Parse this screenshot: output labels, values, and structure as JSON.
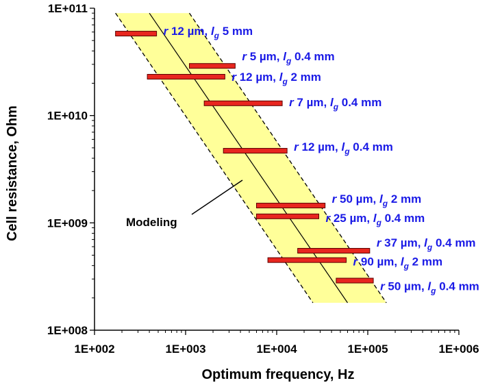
{
  "chart_data": {
    "type": "scatter",
    "xlabel": "Optimum frequency, Hz",
    "ylabel": "Cell resistance, Ohm",
    "xscale": "log",
    "yscale": "log",
    "xlim": [
      100,
      1000000
    ],
    "ylim": [
      100000000,
      100000000000
    ],
    "x_tick_labels": [
      "1E+002",
      "1E+003",
      "1E+004",
      "1E+005",
      "1E+006"
    ],
    "y_tick_labels": [
      "1E+008",
      "1E+009",
      "1E+010",
      "1E+011"
    ],
    "grid": false,
    "colors": {
      "bar_fill": "#e8261f",
      "bar_stroke": "#5a0000",
      "band_fill": "#ffff99",
      "label": "#1a1ae6"
    },
    "modeling_band": {
      "label": "Modeling",
      "center_line": [
        [
          400,
          90000000000
        ],
        [
          60000,
          180000000
        ]
      ],
      "upper_dashed": [
        [
          1100,
          90000000000
        ],
        [
          160000,
          180000000
        ]
      ],
      "lower_dashed": [
        [
          170,
          90000000000
        ],
        [
          25000,
          180000000
        ]
      ]
    },
    "ranges": [
      {
        "r": "12 µm",
        "lg": "5 mm",
        "x_min": 170,
        "x_max": 480,
        "y": 58000000000
      },
      {
        "r": "5 µm",
        "lg": "0.4 mm",
        "x_min": 1100,
        "x_max": 3500,
        "y": 29000000000
      },
      {
        "r": "12 µm",
        "lg": "2 mm",
        "x_min": 380,
        "x_max": 2700,
        "y": 23000000000
      },
      {
        "r": "7 µm",
        "lg": "0.4 mm",
        "x_min": 1600,
        "x_max": 11500,
        "y": 13000000000
      },
      {
        "r": "12 µm",
        "lg": "0.4 mm",
        "x_min": 2600,
        "x_max": 13000,
        "y": 4700000000
      },
      {
        "r": "50 µm",
        "lg": "2 mm",
        "x_min": 6000,
        "x_max": 34000,
        "y": 1450000000
      },
      {
        "r": "25 µm",
        "lg": "0.4 mm",
        "x_min": 6000,
        "x_max": 29000,
        "y": 1150000000
      },
      {
        "r": "37 µm",
        "lg": "0.4 mm",
        "x_min": 17000,
        "x_max": 105000,
        "y": 550000000
      },
      {
        "r": "90 µm",
        "lg": "2 mm",
        "x_min": 8000,
        "x_max": 58000,
        "y": 450000000
      },
      {
        "r": "50 µm",
        "lg": "0.4 mm",
        "x_min": 45000,
        "x_max": 115000,
        "y": 290000000
      }
    ],
    "label_prefix_r": "r",
    "label_prefix_lg": "l",
    "label_sub_g": "g"
  }
}
